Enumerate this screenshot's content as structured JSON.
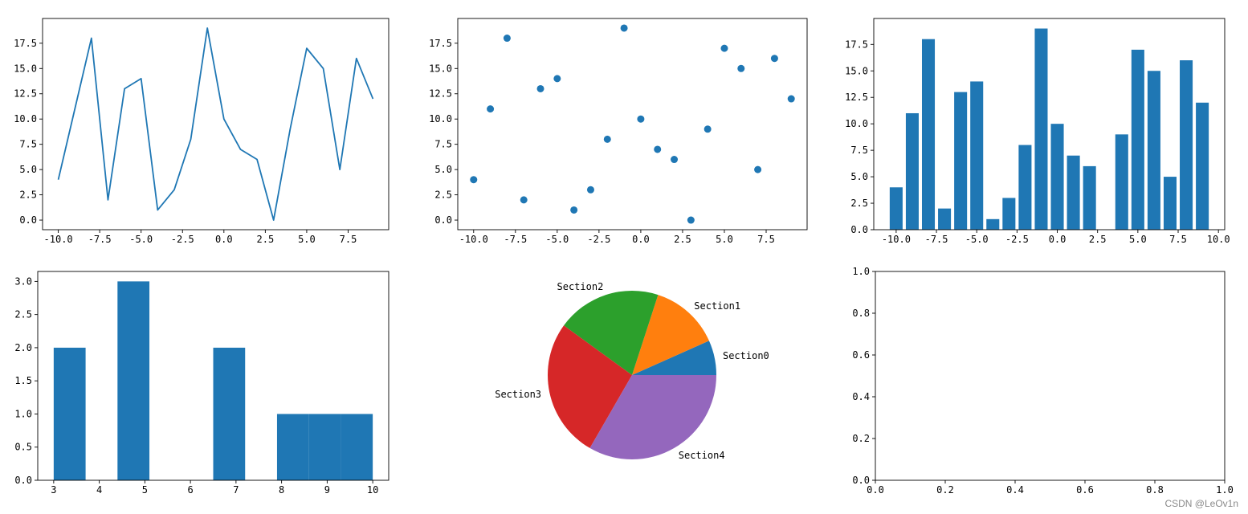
{
  "colors": {
    "primary": "#1f77b4",
    "pie": [
      "#1f77b4",
      "#ff7f0e",
      "#2ca02c",
      "#d62728",
      "#9467bd"
    ]
  },
  "watermark": "CSDN @LeOv1n",
  "chart_data": [
    {
      "id": "line",
      "type": "line",
      "x": [
        -10,
        -9,
        -8,
        -7,
        -6,
        -5,
        -4,
        -3,
        -2,
        -1,
        0,
        1,
        2,
        3,
        4,
        5,
        6,
        7,
        8,
        9
      ],
      "y": [
        4,
        11,
        18,
        2,
        13,
        14,
        1,
        3,
        8,
        19,
        10,
        7,
        6,
        0,
        9,
        17,
        15,
        5,
        16,
        12
      ],
      "xlim": [
        -10.95,
        9.95
      ],
      "ylim": [
        -0.95,
        19.95
      ],
      "xticks": [
        -10.0,
        -7.5,
        -5.0,
        -2.5,
        0.0,
        2.5,
        5.0,
        7.5
      ],
      "yticks": [
        0.0,
        2.5,
        5.0,
        7.5,
        10.0,
        12.5,
        15.0,
        17.5
      ],
      "xtick_labels": [
        "-10.0",
        "-7.5",
        "-5.0",
        "-2.5",
        "0.0",
        "2.5",
        "5.0",
        "7.5"
      ],
      "ytick_labels": [
        "0.0",
        "2.5",
        "5.0",
        "7.5",
        "10.0",
        "12.5",
        "15.0",
        "17.5"
      ],
      "grid": false
    },
    {
      "id": "scatter",
      "type": "scatter",
      "x": [
        -10,
        -9,
        -8,
        -7,
        -6,
        -5,
        -4,
        -3,
        -2,
        -1,
        0,
        1,
        2,
        3,
        4,
        5,
        6,
        7,
        8,
        9
      ],
      "y": [
        4,
        11,
        18,
        2,
        13,
        14,
        1,
        3,
        8,
        19,
        10,
        7,
        6,
        0,
        9,
        17,
        15,
        5,
        16,
        12
      ],
      "xlim": [
        -10.95,
        9.95
      ],
      "ylim": [
        -0.95,
        19.95
      ],
      "xticks": [
        -10.0,
        -7.5,
        -5.0,
        -2.5,
        0.0,
        2.5,
        5.0,
        7.5
      ],
      "yticks": [
        0.0,
        2.5,
        5.0,
        7.5,
        10.0,
        12.5,
        15.0,
        17.5
      ],
      "xtick_labels": [
        "-10.0",
        "-7.5",
        "-5.0",
        "-2.5",
        "0.0",
        "2.5",
        "5.0",
        "7.5"
      ],
      "ytick_labels": [
        "0.0",
        "2.5",
        "5.0",
        "7.5",
        "10.0",
        "12.5",
        "15.0",
        "17.5"
      ],
      "grid": false
    },
    {
      "id": "bar",
      "type": "bar",
      "x": [
        -10,
        -9,
        -8,
        -7,
        -6,
        -5,
        -4,
        -3,
        -2,
        -1,
        0,
        1,
        2,
        3,
        4,
        5,
        6,
        7,
        8,
        9
      ],
      "values": [
        4,
        11,
        18,
        2,
        13,
        14,
        1,
        3,
        8,
        19,
        10,
        7,
        6,
        0,
        9,
        17,
        15,
        5,
        16,
        12
      ],
      "bar_width": 0.8,
      "xlim": [
        -11.39,
        10.39
      ],
      "ylim": [
        0,
        19.95
      ],
      "xticks": [
        -10.0,
        -7.5,
        -5.0,
        -2.5,
        0.0,
        2.5,
        5.0,
        7.5,
        10.0
      ],
      "yticks": [
        0.0,
        2.5,
        5.0,
        7.5,
        10.0,
        12.5,
        15.0,
        17.5
      ],
      "xtick_labels": [
        "-10.0",
        "-7.5",
        "-5.0",
        "-2.5",
        "0.0",
        "2.5",
        "5.0",
        "7.5",
        "10.0"
      ],
      "ytick_labels": [
        "0.0",
        "2.5",
        "5.0",
        "7.5",
        "10.0",
        "12.5",
        "15.0",
        "17.5"
      ],
      "grid": false
    },
    {
      "id": "hist",
      "type": "bar",
      "bins": [
        {
          "x0": 3.0,
          "x1": 3.7,
          "count": 2
        },
        {
          "x0": 4.4,
          "x1": 5.1,
          "count": 3
        },
        {
          "x0": 6.5,
          "x1": 7.2,
          "count": 2
        },
        {
          "x0": 7.9,
          "x1": 8.6,
          "count": 1
        },
        {
          "x0": 8.6,
          "x1": 9.3,
          "count": 1
        },
        {
          "x0": 9.3,
          "x1": 10.0,
          "count": 1
        }
      ],
      "xlim": [
        2.65,
        10.35
      ],
      "ylim": [
        0,
        3.15
      ],
      "xticks": [
        3,
        4,
        5,
        6,
        7,
        8,
        9,
        10
      ],
      "yticks": [
        0.0,
        0.5,
        1.0,
        1.5,
        2.0,
        2.5,
        3.0
      ],
      "xtick_labels": [
        "3",
        "4",
        "5",
        "6",
        "7",
        "8",
        "9",
        "10"
      ],
      "ytick_labels": [
        "0.0",
        "0.5",
        "1.0",
        "1.5",
        "2.0",
        "2.5",
        "3.0"
      ],
      "grid": false
    },
    {
      "id": "pie",
      "type": "pie",
      "labels": [
        "Section0",
        "Section1",
        "Section2",
        "Section3",
        "Section4"
      ],
      "values": [
        1,
        2,
        3,
        4,
        5
      ]
    },
    {
      "id": "empty",
      "type": "line",
      "xlim": [
        0,
        1
      ],
      "ylim": [
        0,
        1
      ],
      "xticks": [
        0.0,
        0.2,
        0.4,
        0.6,
        0.8,
        1.0
      ],
      "yticks": [
        0.0,
        0.2,
        0.4,
        0.6,
        0.8,
        1.0
      ],
      "xtick_labels": [
        "0.0",
        "0.2",
        "0.4",
        "0.6",
        "0.8",
        "1.0"
      ],
      "ytick_labels": [
        "0.0",
        "0.2",
        "0.4",
        "0.6",
        "0.8",
        "1.0"
      ],
      "grid": false
    }
  ]
}
